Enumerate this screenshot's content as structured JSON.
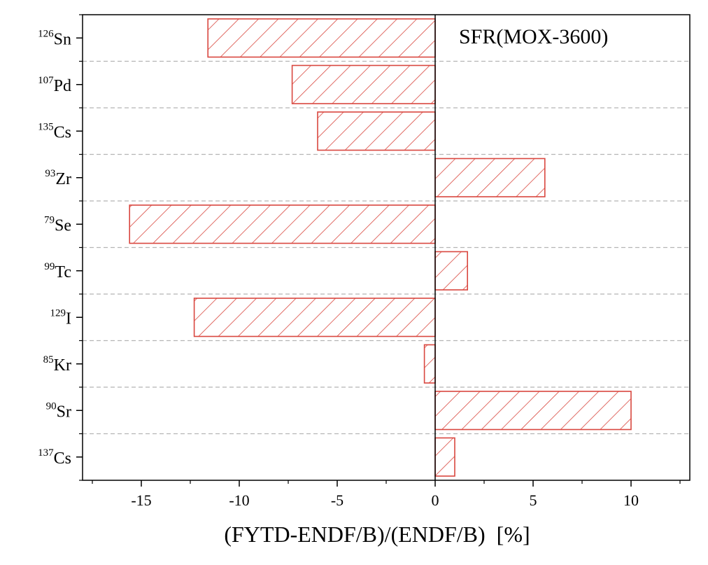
{
  "chart_data": {
    "type": "bar",
    "orientation": "horizontal",
    "title": "SFR(MOX-3600)",
    "xlabel": "(FYTD-ENDF/B)/(ENDF/B)  [%]",
    "ylabel": "",
    "xlim": [
      -18,
      13
    ],
    "xticks": [
      -15,
      -10,
      -5,
      0,
      5,
      10
    ],
    "xtick_labels": [
      "-15",
      "-10",
      "-5",
      "0",
      "5",
      "10"
    ],
    "grid": "horizontal dashed separators between categories",
    "bar_style": "red diagonal hatch, red outline",
    "bar_color": "#d9473f",
    "categories": [
      {
        "sup": "126",
        "sym": "Sn"
      },
      {
        "sup": "107",
        "sym": "Pd"
      },
      {
        "sup": "135",
        "sym": "Cs"
      },
      {
        "sup": "93",
        "sym": "Zr"
      },
      {
        "sup": "79",
        "sym": "Se"
      },
      {
        "sup": "99",
        "sym": "Tc"
      },
      {
        "sup": "129",
        "sym": "I"
      },
      {
        "sup": "85",
        "sym": "Kr"
      },
      {
        "sup": "90",
        "sym": "Sr"
      },
      {
        "sup": "137",
        "sym": "Cs"
      }
    ],
    "values": [
      -11.6,
      -7.3,
      -6.0,
      5.6,
      -15.6,
      1.65,
      -12.3,
      -0.55,
      10.0,
      1.0
    ]
  }
}
